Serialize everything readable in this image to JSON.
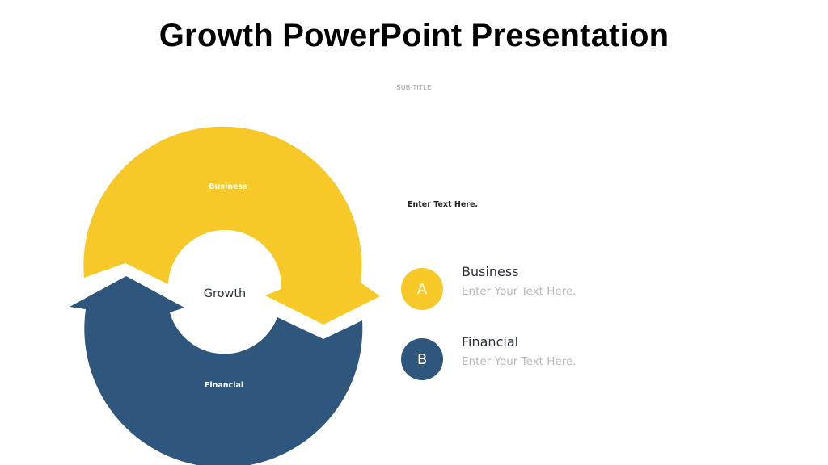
{
  "slide": {
    "title": "Growth PowerPoint Presentation",
    "subtitle": "SUB-TITLE"
  },
  "cycle": {
    "center_label": "Growth",
    "top_segment": {
      "label": "Business",
      "color": "#F6C928"
    },
    "bottom_segment": {
      "label": "Financial",
      "color": "#2F577E"
    }
  },
  "intro_text": "Enter Text Here.",
  "legend": [
    {
      "badge": "A",
      "title": "Business",
      "description": "Enter Your Text Here.",
      "color": "#F6C928"
    },
    {
      "badge": "B",
      "title": "Financial",
      "description": "Enter Your Text Here.",
      "color": "#2F577E"
    }
  ]
}
